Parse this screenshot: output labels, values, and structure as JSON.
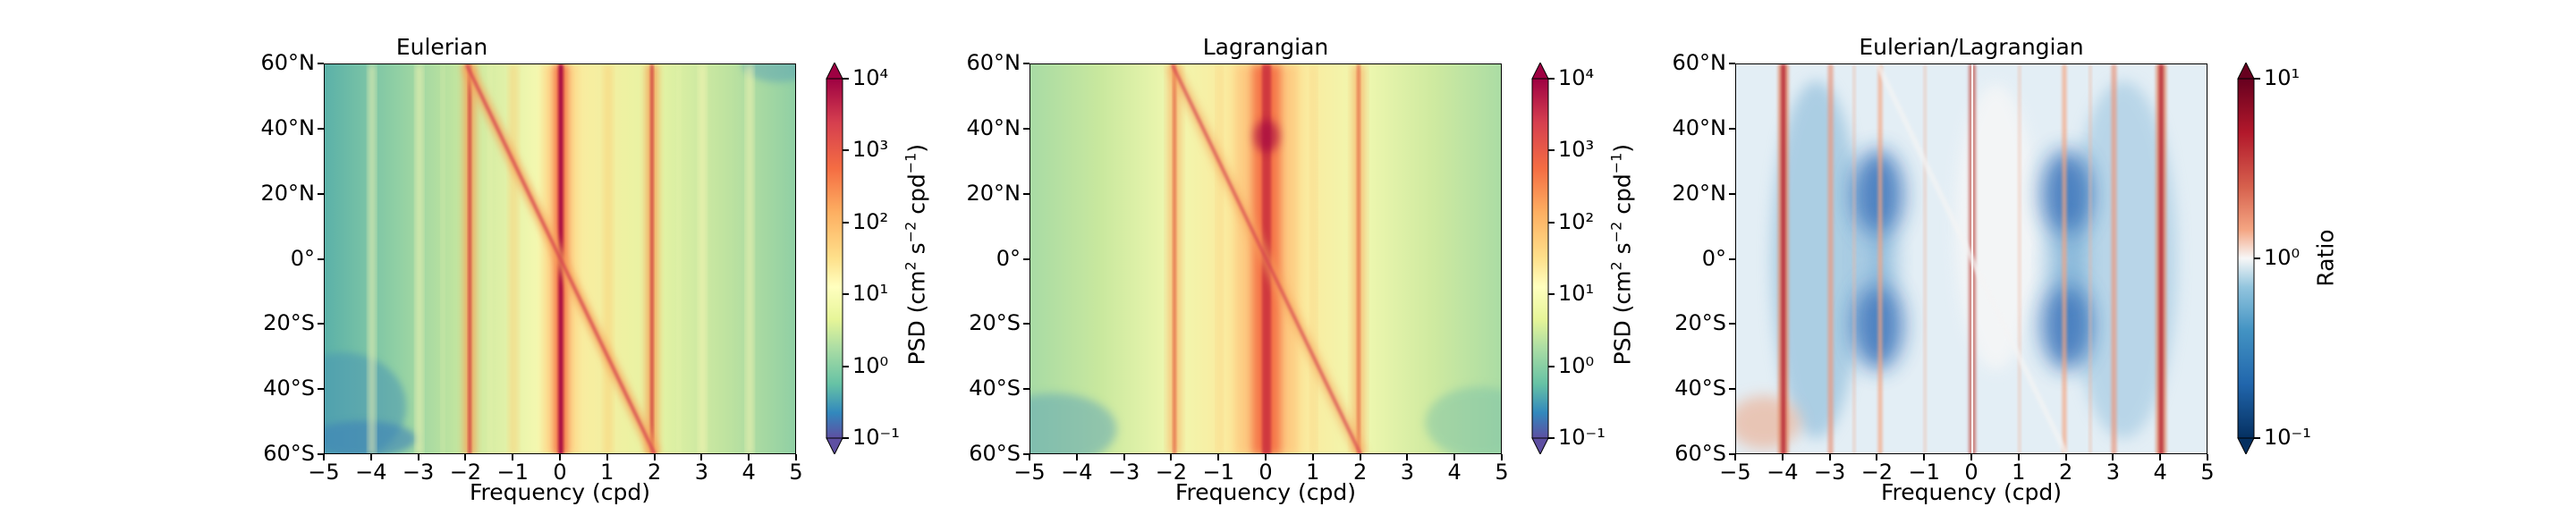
{
  "chart_data": [
    {
      "type": "heatmap",
      "title": "Eulerian",
      "xlabel": "Frequency (cpd)",
      "ylabel": "",
      "x_ticks": [
        "−5",
        "−4",
        "−3",
        "−2",
        "−1",
        "0",
        "1",
        "2",
        "3",
        "4",
        "5"
      ],
      "y_ticks": [
        "60°N",
        "40°N",
        "20°N",
        "0°",
        "20°S",
        "40°S",
        "60°S"
      ],
      "xlim": [
        -5,
        5
      ],
      "ylim": [
        -60,
        60
      ],
      "colorbar": {
        "label": "PSD (cm² s⁻² cpd⁻¹)",
        "scale": "log",
        "range": [
          0.1,
          10000
        ],
        "ticks": [
          "10⁻¹",
          "10⁰",
          "10¹",
          "10²",
          "10³",
          "10⁴"
        ],
        "colormap": "Spectral_r"
      }
    },
    {
      "type": "heatmap",
      "title": "Lagrangian",
      "xlabel": "Frequency (cpd)",
      "ylabel": "",
      "x_ticks": [
        "−5",
        "−4",
        "−3",
        "−2",
        "−1",
        "0",
        "1",
        "2",
        "3",
        "4",
        "5"
      ],
      "y_ticks": [
        "60°N",
        "40°N",
        "20°N",
        "0°",
        "20°S",
        "40°S",
        "60°S"
      ],
      "xlim": [
        -5,
        5
      ],
      "ylim": [
        -60,
        60
      ],
      "colorbar": {
        "label": "PSD (cm² s⁻² cpd⁻¹)",
        "scale": "log",
        "range": [
          0.1,
          10000
        ],
        "ticks": [
          "10⁻¹",
          "10⁰",
          "10¹",
          "10²",
          "10³",
          "10⁴"
        ],
        "colormap": "Spectral_r"
      }
    },
    {
      "type": "heatmap",
      "title": "Eulerian/Lagrangian",
      "xlabel": "Frequency (cpd)",
      "ylabel": "",
      "x_ticks": [
        "−5",
        "−4",
        "−3",
        "−2",
        "−1",
        "0",
        "1",
        "2",
        "3",
        "4",
        "5"
      ],
      "y_ticks": [
        "60°N",
        "40°N",
        "20°N",
        "0°",
        "20°S",
        "40°S",
        "60°S"
      ],
      "xlim": [
        -5,
        5
      ],
      "ylim": [
        -60,
        60
      ],
      "colorbar": {
        "label": "Ratio",
        "scale": "log",
        "range": [
          0.1,
          10
        ],
        "ticks": [
          "10⁻¹",
          "10⁰",
          "10¹"
        ],
        "colormap": "RdBu_r"
      }
    }
  ]
}
